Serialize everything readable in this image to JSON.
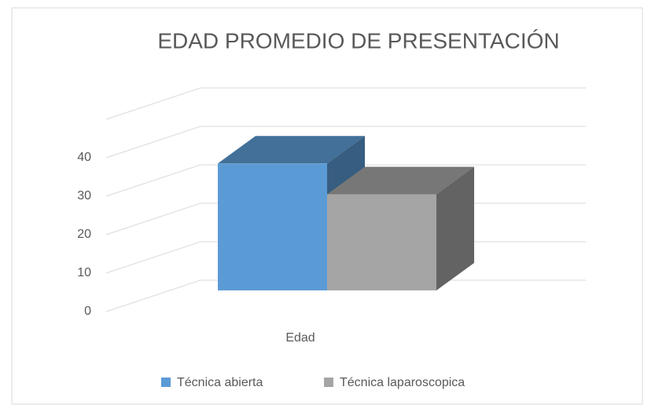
{
  "chart_data": {
    "type": "bar3d",
    "title": "EDAD PROMEDIO DE PRESENTACIÓN",
    "categories": [
      "Edad"
    ],
    "series": [
      {
        "name": "Técnica abierta",
        "color": "#5b9bd5",
        "values": [
          33
        ]
      },
      {
        "name": "Técnica laparoscopica",
        "color": "#a5a5a5",
        "values": [
          25
        ]
      }
    ],
    "ylim": [
      0,
      50
    ],
    "yticks": [
      0,
      10,
      20,
      30,
      40
    ],
    "grid": true,
    "legend": "bottom"
  }
}
